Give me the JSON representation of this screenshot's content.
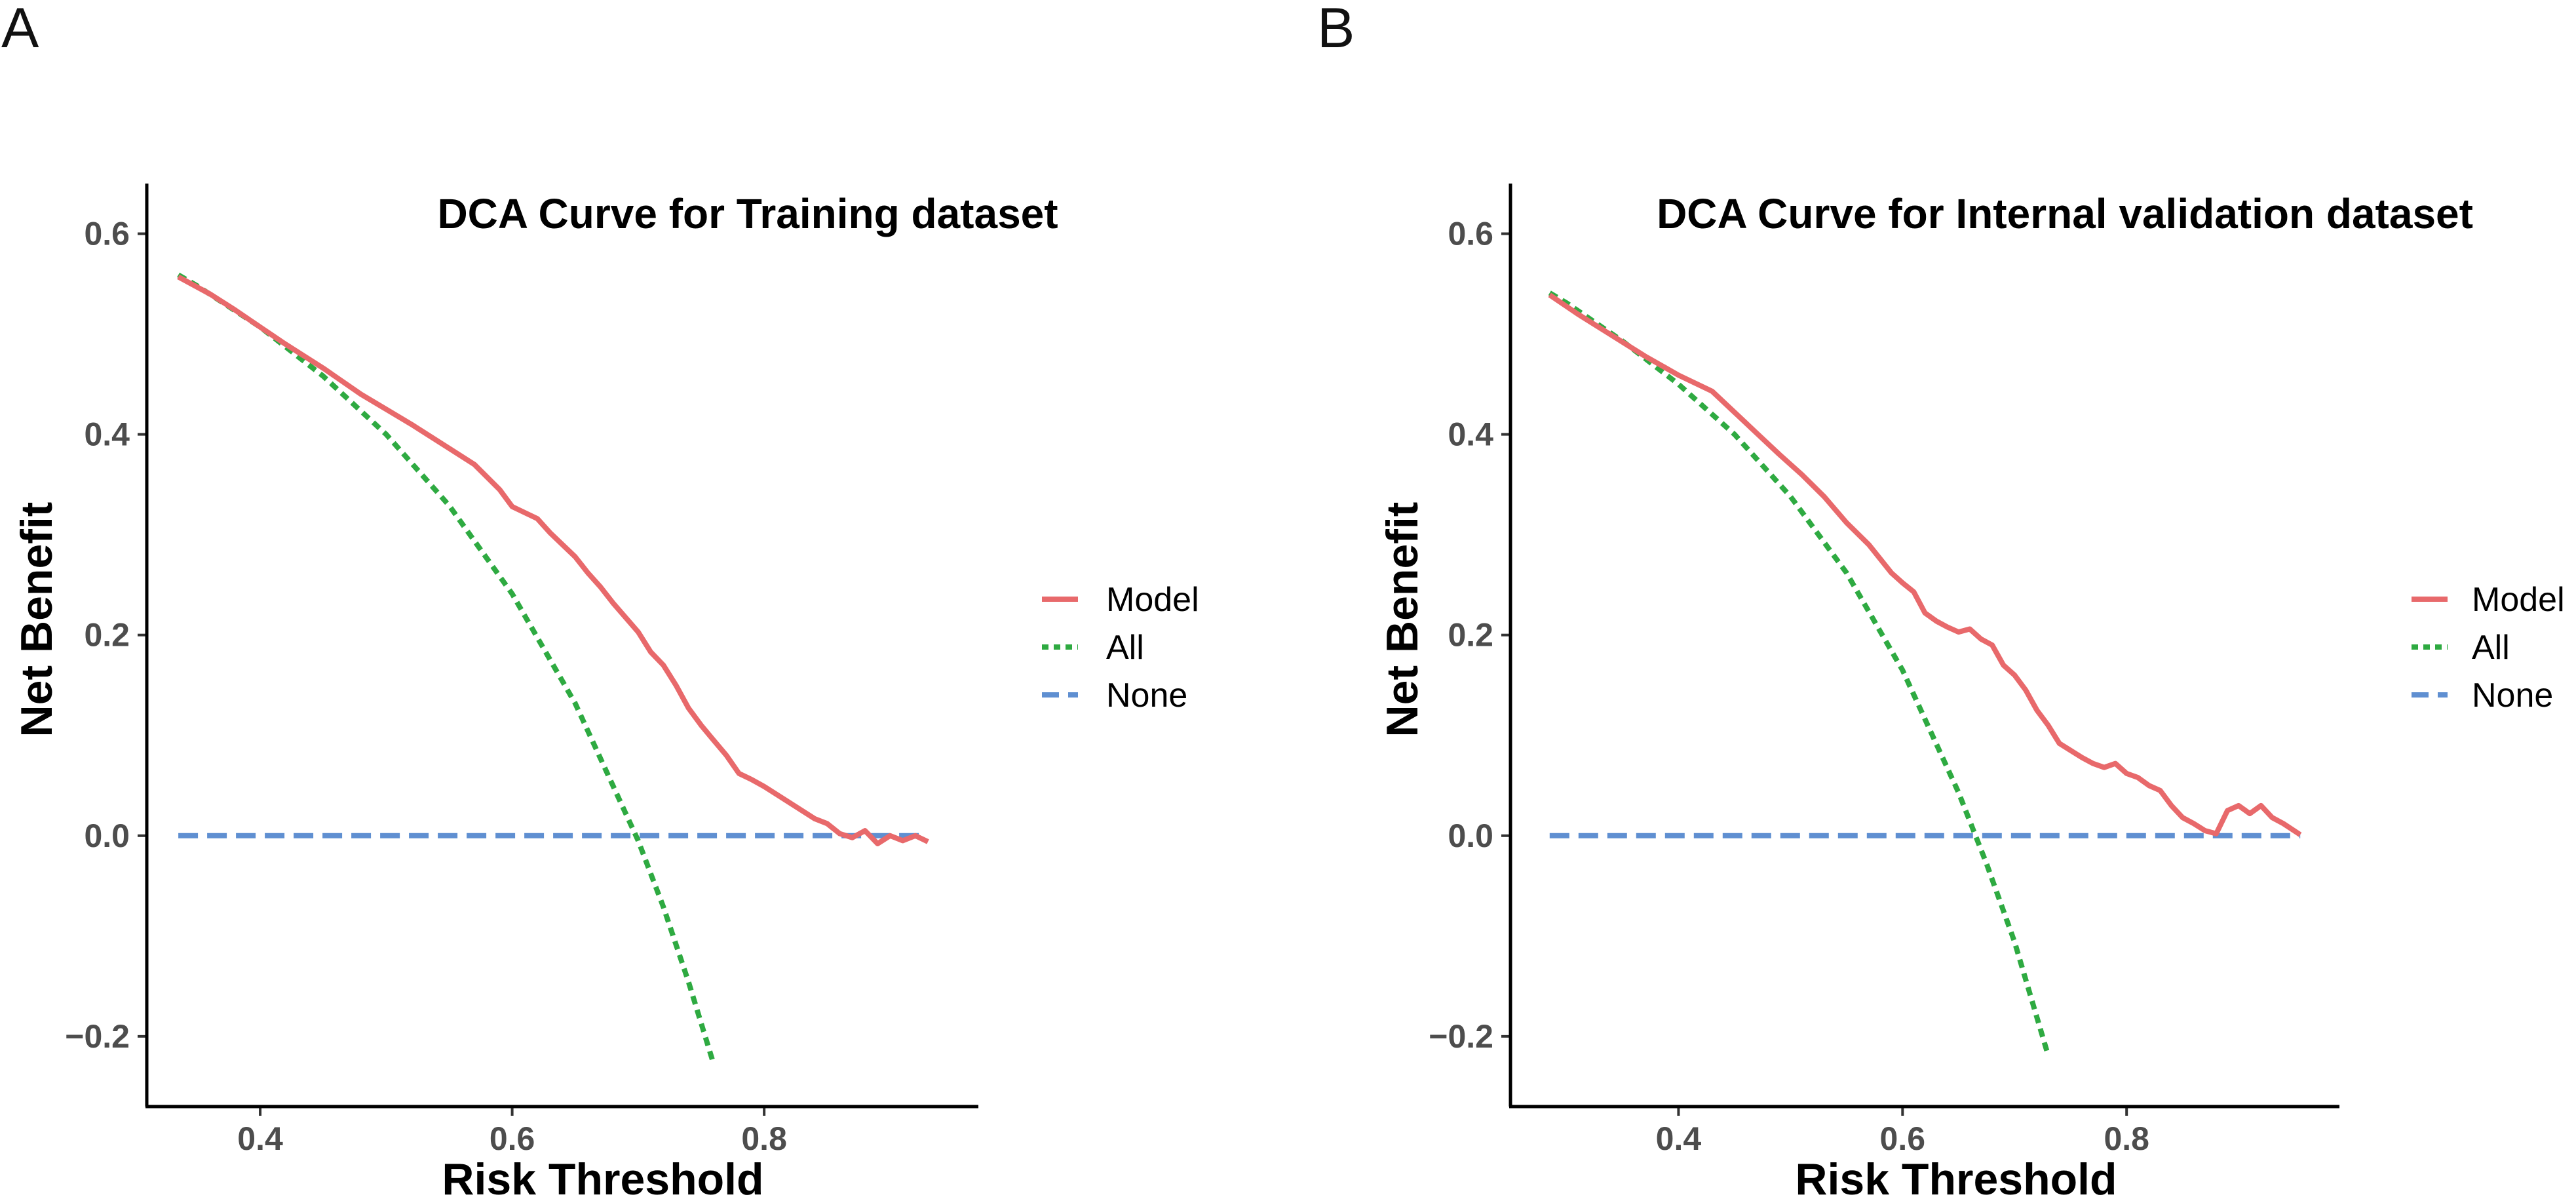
{
  "chart_data": [
    {
      "panel": "A",
      "type": "line",
      "title": "DCA Curve for Training dataset",
      "xlabel": "Risk Threshold",
      "ylabel": "Net Benefit",
      "xlim": [
        0.31,
        0.97
      ],
      "ylim": [
        -0.27,
        0.65
      ],
      "xticks": [
        0.4,
        0.6,
        0.8
      ],
      "xtick_labels": [
        "0.4",
        "0.6",
        "0.8"
      ],
      "yticks": [
        -0.2,
        0.0,
        0.2,
        0.4,
        0.6
      ],
      "ytick_labels": [
        "−0.2",
        "0.0",
        "0.2",
        "0.4",
        "0.6"
      ],
      "series": [
        {
          "name": "Model",
          "color": "#e8696b",
          "style": "solid",
          "x": [
            0.335,
            0.36,
            0.38,
            0.4,
            0.42,
            0.45,
            0.48,
            0.5,
            0.52,
            0.55,
            0.57,
            0.59,
            0.6,
            0.62,
            0.63,
            0.65,
            0.66,
            0.67,
            0.68,
            0.7,
            0.71,
            0.72,
            0.73,
            0.74,
            0.75,
            0.76,
            0.77,
            0.78,
            0.79,
            0.8,
            0.81,
            0.82,
            0.83,
            0.84,
            0.85,
            0.86,
            0.87,
            0.88,
            0.89,
            0.9,
            0.91,
            0.92,
            0.93
          ],
          "y": [
            0.557,
            0.54,
            0.524,
            0.507,
            0.49,
            0.466,
            0.44,
            0.425,
            0.41,
            0.386,
            0.37,
            0.345,
            0.328,
            0.316,
            0.302,
            0.278,
            0.262,
            0.248,
            0.232,
            0.203,
            0.183,
            0.17,
            0.15,
            0.127,
            0.11,
            0.095,
            0.08,
            0.062,
            0.056,
            0.049,
            0.041,
            0.033,
            0.025,
            0.017,
            0.012,
            0.002,
            -0.002,
            0.005,
            -0.008,
            0.0,
            -0.005,
            0.0,
            -0.006
          ]
        },
        {
          "name": "All",
          "color": "#2eaa41",
          "style": "dotted",
          "x": [
            0.335,
            0.35,
            0.4,
            0.45,
            0.5,
            0.55,
            0.6,
            0.65,
            0.7,
            0.72,
            0.74,
            0.76
          ],
          "y": [
            0.559,
            0.548,
            0.507,
            0.458,
            0.4,
            0.329,
            0.241,
            0.132,
            -0.005,
            -0.071,
            -0.146,
            -0.228
          ]
        },
        {
          "name": "None",
          "color": "#5f8fd1",
          "style": "dashed",
          "x": [
            0.335,
            0.93
          ],
          "y": [
            0.0,
            0.0
          ]
        }
      ],
      "legend": [
        "Model",
        "All",
        "None"
      ],
      "legend_position": "right"
    },
    {
      "panel": "B",
      "type": "line",
      "title": "DCA Curve for Internal validation dataset",
      "xlabel": "Risk Threshold",
      "ylabel": "Net Benefit",
      "xlim": [
        0.25,
        0.99
      ],
      "ylim": [
        -0.27,
        0.65
      ],
      "xticks": [
        0.4,
        0.6,
        0.8
      ],
      "xtick_labels": [
        "0.4",
        "0.6",
        "0.8"
      ],
      "yticks": [
        -0.2,
        0.0,
        0.2,
        0.4,
        0.6
      ],
      "ytick_labels": [
        "−0.2",
        "0.0",
        "0.2",
        "0.4",
        "0.6"
      ],
      "series": [
        {
          "name": "Model",
          "color": "#e8696b",
          "style": "solid",
          "x": [
            0.285,
            0.31,
            0.34,
            0.37,
            0.4,
            0.43,
            0.45,
            0.47,
            0.49,
            0.51,
            0.53,
            0.55,
            0.57,
            0.59,
            0.6,
            0.61,
            0.62,
            0.63,
            0.64,
            0.65,
            0.66,
            0.67,
            0.68,
            0.69,
            0.7,
            0.71,
            0.72,
            0.73,
            0.74,
            0.75,
            0.76,
            0.77,
            0.78,
            0.79,
            0.8,
            0.81,
            0.82,
            0.83,
            0.84,
            0.85,
            0.86,
            0.87,
            0.88,
            0.89,
            0.9,
            0.91,
            0.92,
            0.93,
            0.94,
            0.955
          ],
          "y": [
            0.539,
            0.52,
            0.499,
            0.478,
            0.459,
            0.443,
            0.422,
            0.401,
            0.38,
            0.36,
            0.338,
            0.312,
            0.29,
            0.262,
            0.252,
            0.243,
            0.222,
            0.214,
            0.208,
            0.203,
            0.206,
            0.196,
            0.19,
            0.17,
            0.16,
            0.145,
            0.125,
            0.11,
            0.092,
            0.085,
            0.078,
            0.072,
            0.068,
            0.072,
            0.062,
            0.058,
            0.05,
            0.045,
            0.03,
            0.018,
            0.012,
            0.005,
            0.002,
            0.025,
            0.03,
            0.022,
            0.03,
            0.018,
            0.012,
            0.001
          ]
        },
        {
          "name": "All",
          "color": "#2eaa41",
          "style": "dotted",
          "x": [
            0.285,
            0.3,
            0.35,
            0.4,
            0.45,
            0.5,
            0.55,
            0.6,
            0.65,
            0.675,
            0.7,
            0.73
          ],
          "y": [
            0.541,
            0.531,
            0.493,
            0.45,
            0.4,
            0.338,
            0.262,
            0.165,
            0.043,
            -0.028,
            -0.106,
            -0.219
          ]
        },
        {
          "name": "None",
          "color": "#5f8fd1",
          "style": "dashed",
          "x": [
            0.285,
            0.955
          ],
          "y": [
            0.0,
            0.0
          ]
        }
      ],
      "legend": [
        "Model",
        "All",
        "None"
      ],
      "legend_position": "right"
    }
  ]
}
